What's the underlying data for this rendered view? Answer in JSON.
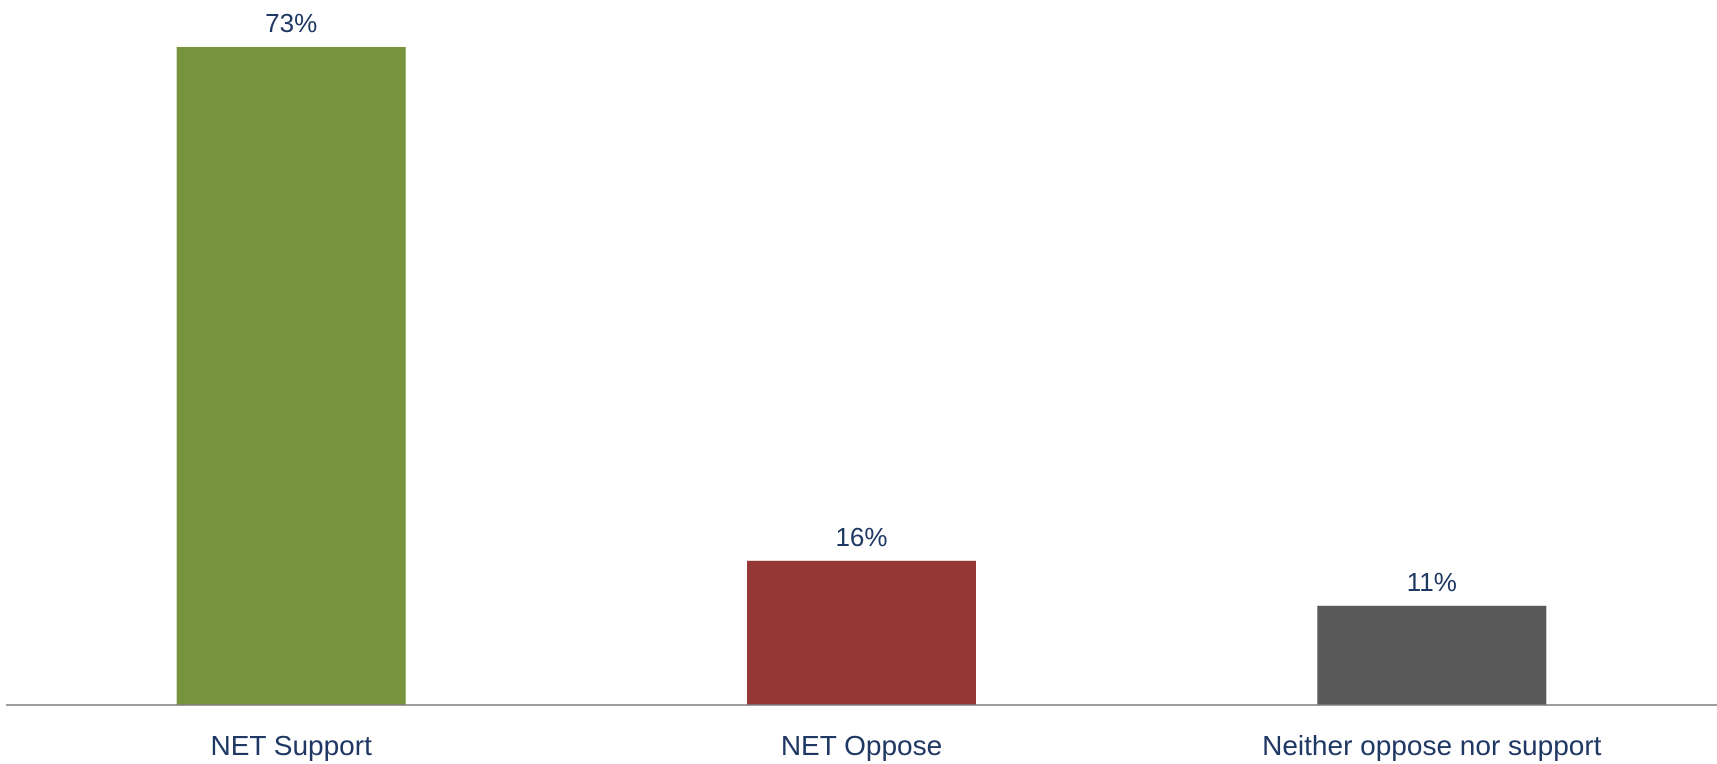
{
  "chart_data": {
    "type": "bar",
    "title": "",
    "xlabel": "",
    "ylabel": "",
    "categories": [
      "NET Support",
      "NET Oppose",
      "Neither oppose nor support"
    ],
    "values": [
      73,
      16,
      11
    ],
    "data_labels": [
      "73%",
      "16%",
      "11%"
    ],
    "unit": "%",
    "ylim": [
      0,
      73
    ],
    "colors": [
      "#77933c",
      "#953735",
      "#595959"
    ],
    "label_color": "#1f3864",
    "axis_color": "#7f7f7f",
    "grid": false,
    "legend": "none"
  }
}
